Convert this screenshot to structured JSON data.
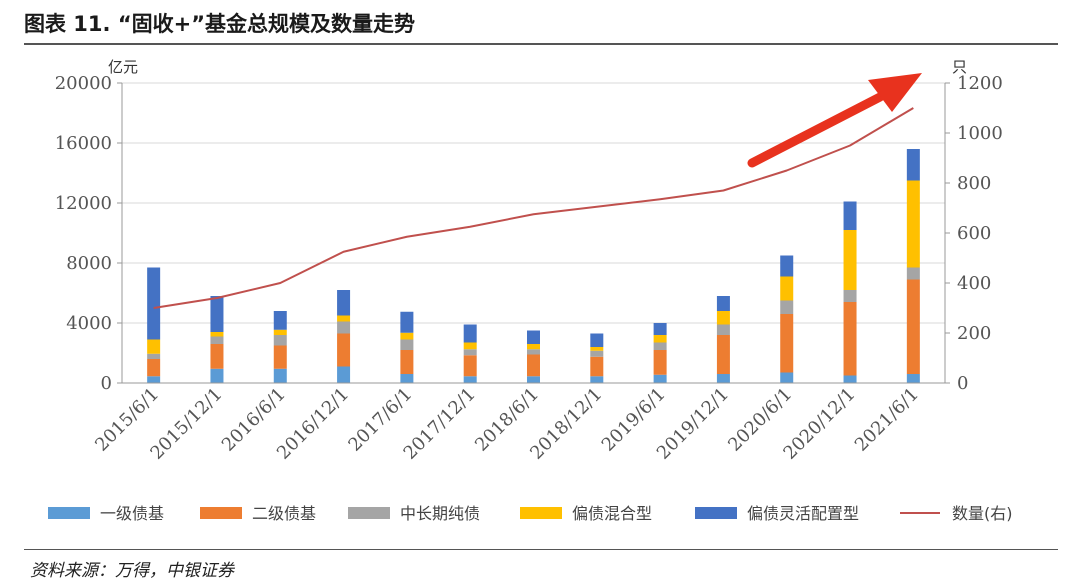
{
  "figure": {
    "title": "图表 11. “固收+”基金总规模及数量走势",
    "source": "资料来源：万得，中银证券"
  },
  "chart_data": {
    "type": "bar",
    "stacked": true,
    "categories": [
      "2015/6/1",
      "2015/12/1",
      "2016/6/1",
      "2016/12/1",
      "2017/6/1",
      "2017/12/1",
      "2018/6/1",
      "2018/12/1",
      "2019/6/1",
      "2019/12/1",
      "2020/6/1",
      "2020/12/1",
      "2021/6/1"
    ],
    "series": [
      {
        "name": "一级债基",
        "color": "#5B9BD5",
        "values": [
          450,
          950,
          950,
          1100,
          600,
          450,
          450,
          450,
          550,
          600,
          700,
          500,
          600
        ]
      },
      {
        "name": "二级债基",
        "color": "#ED7D31",
        "values": [
          1150,
          1650,
          1550,
          2200,
          1600,
          1400,
          1450,
          1300,
          1650,
          2600,
          3900,
          4900,
          6300
        ]
      },
      {
        "name": "中长期纯债",
        "color": "#A5A5A5",
        "values": [
          350,
          500,
          700,
          800,
          700,
          400,
          350,
          400,
          500,
          700,
          900,
          800,
          800
        ]
      },
      {
        "name": "偏债混合型",
        "color": "#FFC000",
        "values": [
          950,
          300,
          350,
          400,
          450,
          450,
          350,
          250,
          500,
          900,
          1600,
          4000,
          5800
        ]
      },
      {
        "name": "偏债灵活配置型",
        "color": "#4472C4",
        "values": [
          4800,
          2400,
          1250,
          1700,
          1400,
          1200,
          900,
          900,
          800,
          1000,
          1400,
          1900,
          2100
        ]
      },
      {
        "name": "数量(右)",
        "type": "line",
        "axis": "right",
        "color": "#C0504D",
        "values": [
          300,
          340,
          400,
          525,
          585,
          625,
          675,
          705,
          735,
          770,
          850,
          950,
          1100
        ]
      }
    ],
    "y_left": {
      "unit": "亿元",
      "min": 0,
      "max": 20000,
      "ticks": [
        0,
        4000,
        8000,
        12000,
        16000,
        20000
      ]
    },
    "y_right": {
      "unit": "只",
      "min": 0,
      "max": 1200,
      "ticks": [
        0,
        200,
        400,
        600,
        800,
        1000,
        1200
      ]
    },
    "grid": true,
    "legend_position": "bottom",
    "annotation": {
      "type": "arrow",
      "color": "#E8321E",
      "direction": "up-right"
    }
  }
}
